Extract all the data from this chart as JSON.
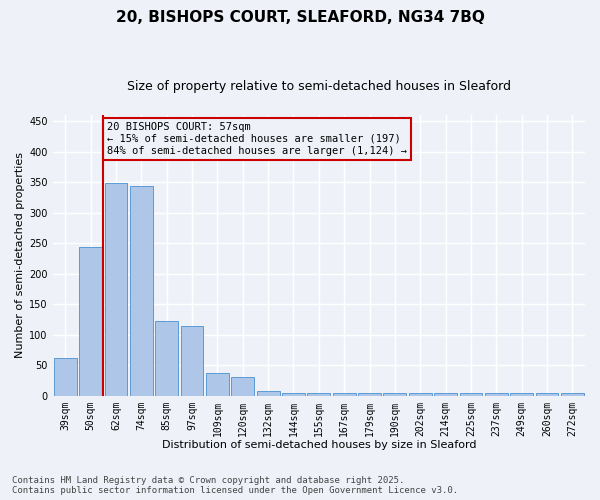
{
  "title_line1": "20, BISHOPS COURT, SLEAFORD, NG34 7BQ",
  "title_line2": "Size of property relative to semi-detached houses in Sleaford",
  "xlabel": "Distribution of semi-detached houses by size in Sleaford",
  "ylabel": "Number of semi-detached properties",
  "categories": [
    "39sqm",
    "50sqm",
    "62sqm",
    "74sqm",
    "85sqm",
    "97sqm",
    "109sqm",
    "120sqm",
    "132sqm",
    "144sqm",
    "155sqm",
    "167sqm",
    "179sqm",
    "190sqm",
    "202sqm",
    "214sqm",
    "225sqm",
    "237sqm",
    "249sqm",
    "260sqm",
    "272sqm"
  ],
  "values": [
    62,
    244,
    348,
    344,
    122,
    115,
    38,
    30,
    8,
    5,
    5,
    5,
    5,
    5,
    5,
    5,
    5,
    5,
    5,
    5,
    5
  ],
  "bar_color": "#aec6e8",
  "bar_edge_color": "#5b9bd5",
  "vline_color": "#cc0000",
  "annotation_text": "20 BISHOPS COURT: 57sqm\n← 15% of semi-detached houses are smaller (197)\n84% of semi-detached houses are larger (1,124) →",
  "annotation_box_color": "#cc0000",
  "ylim": [
    0,
    460
  ],
  "yticks": [
    0,
    50,
    100,
    150,
    200,
    250,
    300,
    350,
    400,
    450
  ],
  "footnote": "Contains HM Land Registry data © Crown copyright and database right 2025.\nContains public sector information licensed under the Open Government Licence v3.0.",
  "bg_color": "#eef2f8",
  "grid_color": "#ffffff",
  "title_fontsize": 11,
  "subtitle_fontsize": 9,
  "axis_label_fontsize": 8,
  "tick_fontsize": 7,
  "annotation_fontsize": 7.5,
  "footnote_fontsize": 6.5
}
